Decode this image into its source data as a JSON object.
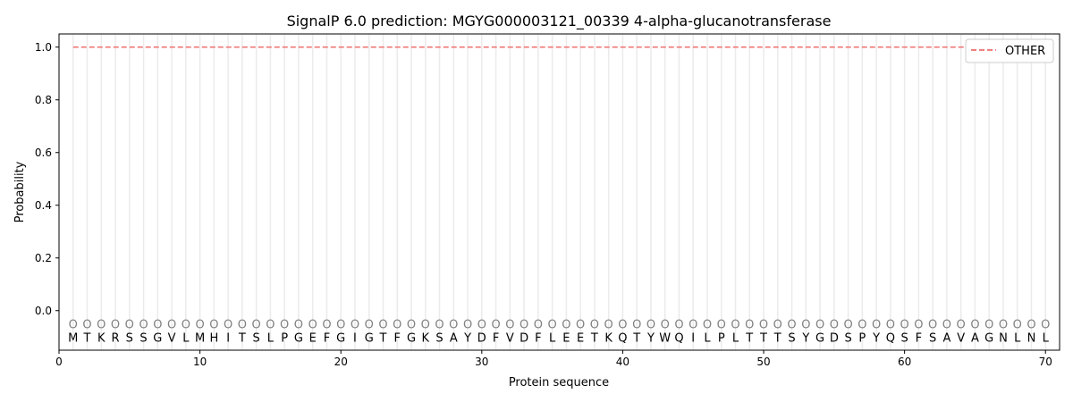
{
  "chart_data": {
    "type": "line",
    "title": "SignalP 6.0 prediction: MGYG000003121_00339 4-alpha-glucanotransferase",
    "xlabel": "Protein sequence",
    "ylabel": "Probability",
    "xlim": [
      0,
      71
    ],
    "ylim": [
      -0.15,
      1.05
    ],
    "xticks": [
      0,
      10,
      20,
      30,
      40,
      50,
      60,
      70
    ],
    "yticks": [
      0.0,
      0.2,
      0.4,
      0.6,
      0.8,
      1.0
    ],
    "ytick_labels": [
      "0.0",
      "0.2",
      "0.4",
      "0.6",
      "0.8",
      "1.0"
    ],
    "grid": "vertical lines at each residue",
    "legend_position": "top-right",
    "sequence": [
      "M",
      "T",
      "K",
      "R",
      "S",
      "S",
      "G",
      "V",
      "L",
      "M",
      "H",
      "I",
      "T",
      "S",
      "L",
      "P",
      "G",
      "E",
      "F",
      "G",
      "I",
      "G",
      "T",
      "F",
      "G",
      "K",
      "S",
      "A",
      "Y",
      "D",
      "F",
      "V",
      "D",
      "F",
      "L",
      "E",
      "E",
      "T",
      "K",
      "Q",
      "T",
      "Y",
      "W",
      "Q",
      "I",
      "L",
      "P",
      "L",
      "T",
      "T",
      "T",
      "S",
      "Y",
      "G",
      "D",
      "S",
      "P",
      "Y",
      "Q",
      "S",
      "F",
      "S",
      "A",
      "V",
      "A",
      "G",
      "N",
      "L",
      "N",
      "L"
    ],
    "region_label": "O",
    "series": [
      {
        "name": "OTHER",
        "color": "#f08080",
        "style": "dashed",
        "x_start": 1,
        "x_end": 70,
        "value": 1.0
      }
    ]
  }
}
